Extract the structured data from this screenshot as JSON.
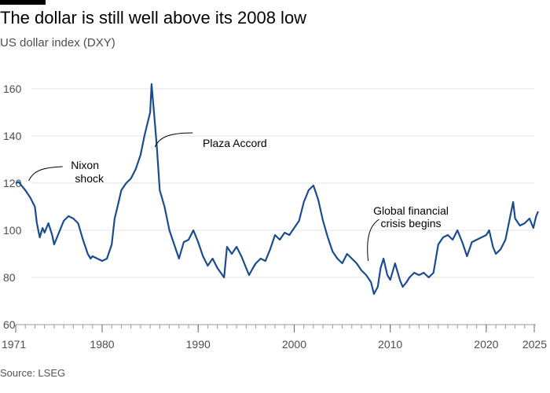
{
  "header": {
    "title": "The dollar is still well above its 2008 low",
    "subtitle": "US dollar index (DXY)"
  },
  "footer": {
    "source": "Source: LSEG"
  },
  "colors": {
    "line": "#1a4d8f",
    "grid": "#e6e6e6",
    "axis": "#999999",
    "text": "#4d4d4d"
  },
  "chart_data": {
    "type": "line",
    "title": "The dollar is still well above its 2008 low",
    "subtitle": "US dollar index (DXY)",
    "xlabel": "",
    "ylabel": "",
    "xlim": [
      1971,
      2025.6
    ],
    "ylim": [
      60,
      165
    ],
    "grid": true,
    "x_ticks": [
      "1971",
      "1980",
      "1990",
      "2000",
      "2010",
      "2020",
      "2025"
    ],
    "y_ticks": [
      "60",
      "80",
      "100",
      "120",
      "140",
      "160"
    ],
    "series": [
      {
        "name": "",
        "x": [
          1971.0,
          1971.3,
          1971.6,
          1972.0,
          1972.5,
          1973.0,
          1973.2,
          1973.5,
          1973.8,
          1974.0,
          1974.4,
          1974.8,
          1975.0,
          1975.5,
          1976.0,
          1976.5,
          1977.0,
          1977.5,
          1978.0,
          1978.5,
          1978.8,
          1979.0,
          1979.5,
          1980.0,
          1980.5,
          1981.0,
          1981.3,
          1981.6,
          1982.0,
          1982.5,
          1983.0,
          1983.5,
          1984.0,
          1984.4,
          1984.7,
          1985.0,
          1985.15,
          1985.4,
          1985.7,
          1986.0,
          1986.5,
          1987.0,
          1987.5,
          1988.0,
          1988.5,
          1989.0,
          1989.5,
          1990.0,
          1990.5,
          1991.0,
          1991.5,
          1992.0,
          1992.7,
          1993.0,
          1993.5,
          1994.0,
          1994.5,
          1995.0,
          1995.3,
          1995.7,
          1996.0,
          1996.5,
          1997.0,
          1997.5,
          1998.0,
          1998.5,
          1999.0,
          1999.5,
          2000.0,
          2000.5,
          2001.0,
          2001.5,
          2002.0,
          2002.5,
          2003.0,
          2003.5,
          2004.0,
          2004.5,
          2005.0,
          2005.5,
          2006.0,
          2006.5,
          2007.0,
          2007.5,
          2008.0,
          2008.3,
          2008.7,
          2009.0,
          2009.3,
          2009.7,
          2010.0,
          2010.5,
          2011.0,
          2011.3,
          2011.7,
          2012.0,
          2012.5,
          2013.0,
          2013.5,
          2014.0,
          2014.5,
          2015.0,
          2015.5,
          2016.0,
          2016.5,
          2017.0,
          2017.5,
          2018.0,
          2018.5,
          2019.0,
          2019.5,
          2020.0,
          2020.3,
          2020.7,
          2021.0,
          2021.5,
          2022.0,
          2022.4,
          2022.8,
          2023.0,
          2023.5,
          2024.0,
          2024.5,
          2024.9,
          2025.2,
          2025.4
        ],
        "values": [
          120,
          120.5,
          119,
          117,
          114,
          110,
          103,
          97,
          101,
          99,
          103,
          98,
          94,
          99,
          104,
          106,
          105,
          103,
          96,
          90,
          88,
          89,
          88,
          87,
          88,
          94,
          105,
          110,
          117,
          120,
          122,
          126,
          132,
          140,
          145,
          150,
          162,
          150,
          135,
          117,
          110,
          100,
          94,
          88,
          95,
          96,
          100,
          95,
          89,
          85,
          88,
          84,
          80,
          93,
          90,
          93,
          89,
          84,
          81,
          84,
          86,
          88,
          87,
          92,
          98,
          96,
          99,
          98,
          101,
          104,
          112,
          117,
          119,
          113,
          104,
          97,
          91,
          88,
          86,
          90,
          88,
          86,
          83,
          81,
          78,
          73,
          76,
          84,
          88,
          81,
          79,
          86,
          79,
          76,
          78,
          80,
          82,
          81,
          82,
          80,
          82,
          94,
          97,
          98,
          96,
          100,
          95,
          89,
          95,
          96,
          97,
          98,
          100,
          93,
          90,
          92,
          96,
          104,
          112,
          105,
          102,
          103,
          105,
          101,
          106,
          108
        ]
      }
    ],
    "annotations": [
      {
        "label": [
          "Nixon",
          "shock"
        ],
        "x": 1972.2,
        "y": 119
      },
      {
        "label": [
          "Plaza Accord"
        ],
        "x": 1985.5,
        "y": 136
      },
      {
        "label": [
          "Global financial",
          "crisis begins"
        ],
        "x": 2007.7,
        "y": 82
      }
    ]
  }
}
